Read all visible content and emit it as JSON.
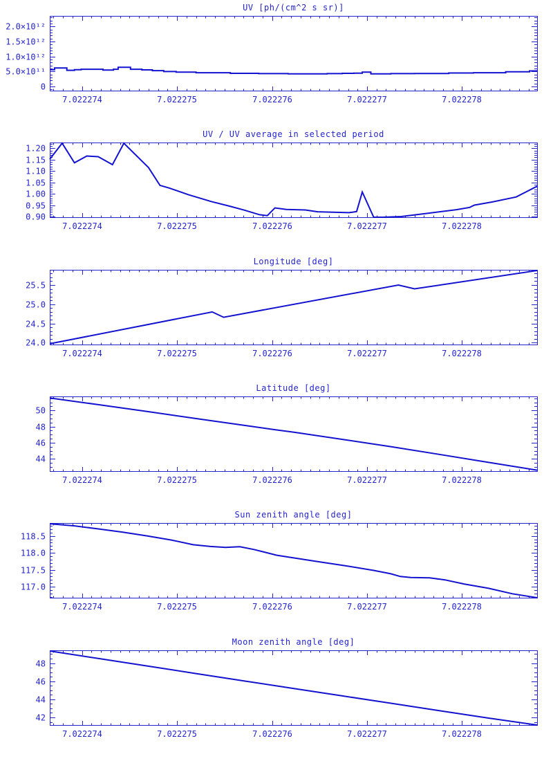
{
  "colors": {
    "accent": "#2424cc",
    "line": "#1212d0",
    "background": "#ffffff"
  },
  "x_axis": {
    "xlim": [
      7.02227366,
      7.02227879
    ],
    "minor_divisions": 10,
    "ticks": [
      {
        "v": 7.022274,
        "label": "7.022274"
      },
      {
        "v": 7.022275,
        "label": "7.022275"
      },
      {
        "v": 7.022276,
        "label": "7.022276"
      },
      {
        "v": 7.022277,
        "label": "7.022277"
      },
      {
        "v": 7.022278,
        "label": "7.022278"
      }
    ]
  },
  "chart_data": [
    {
      "id": "uv",
      "type": "line",
      "title": "UV [ph/(cm^2 s sr)]",
      "step_mode": true,
      "ylim": [
        -160000000000.0,
        2353000000000.0
      ],
      "yminor": 100000000000.0,
      "yticks": [
        {
          "v": 0,
          "label": "0"
        },
        {
          "v": 500000000000.0,
          "label": "5.0×10¹¹"
        },
        {
          "v": 1000000000000.0,
          "label": "1.0×10¹²"
        },
        {
          "v": 1500000000000.0,
          "label": "1.5×10¹²"
        },
        {
          "v": 2000000000000.0,
          "label": "2.0×10¹²"
        }
      ],
      "x": [
        7.02227366,
        7.02227371,
        7.02227384,
        7.02227392,
        7.02227399,
        7.02227422,
        7.02227433,
        7.02227438,
        7.02227451,
        7.02227463,
        7.02227474,
        7.02227486,
        7.02227499,
        7.0222752,
        7.02227556,
        7.02227586,
        7.02227617,
        7.02227658,
        7.02227674,
        7.02227686,
        7.02227695,
        7.02227704,
        7.02227725,
        7.0222775,
        7.02227786,
        7.02227812,
        7.02227846,
        7.02227871,
        7.02227879
      ],
      "y": [
        560000000000.0,
        620000000000.0,
        540000000000.0,
        560000000000.0,
        575000000000.0,
        550000000000.0,
        575000000000.0,
        640000000000.0,
        575000000000.0,
        555000000000.0,
        530000000000.0,
        500000000000.0,
        480000000000.0,
        460000000000.0,
        440000000000.0,
        430000000000.0,
        420000000000.0,
        430000000000.0,
        440000000000.0,
        445000000000.0,
        480000000000.0,
        420000000000.0,
        430000000000.0,
        435000000000.0,
        450000000000.0,
        460000000000.0,
        490000000000.0,
        520000000000.0,
        530000000000.0
      ]
    },
    {
      "id": "uv-ratio",
      "type": "line",
      "title": "UV / UV average in selected period",
      "step_mode": false,
      "ylim": [
        0.8939,
        1.2252
      ],
      "yminor": 0.01,
      "yticks": [
        {
          "v": 0.9,
          "label": "0.90"
        },
        {
          "v": 0.95,
          "label": "0.95"
        },
        {
          "v": 1.0,
          "label": "1.00"
        },
        {
          "v": 1.05,
          "label": "1.05"
        },
        {
          "v": 1.1,
          "label": "1.10"
        },
        {
          "v": 1.15,
          "label": "1.15"
        },
        {
          "v": 1.2,
          "label": "1.20"
        }
      ],
      "x": [
        7.02227366,
        7.02227379,
        7.02227392,
        7.02227405,
        7.02227417,
        7.02227432,
        7.02227444,
        7.0222747,
        7.02227482,
        7.02227492,
        7.02227512,
        7.02227536,
        7.02227555,
        7.02227571,
        7.02227587,
        7.02227595,
        7.02227603,
        7.02227615,
        7.02227635,
        7.02227648,
        7.02227681,
        7.02227689,
        7.02227695,
        7.02227707,
        7.02227716,
        7.02227736,
        7.02227765,
        7.02227794,
        7.02227808,
        7.02227813,
        7.02227832,
        7.02227857,
        7.02227879
      ],
      "y": [
        1.152,
        1.225,
        1.136,
        1.166,
        1.163,
        1.128,
        1.225,
        1.115,
        1.037,
        1.025,
        0.996,
        0.966,
        0.946,
        0.928,
        0.908,
        0.904,
        0.938,
        0.931,
        0.929,
        0.921,
        0.917,
        0.922,
        1.008,
        0.885,
        0.885,
        0.9,
        0.915,
        0.93,
        0.94,
        0.95,
        0.964,
        0.986,
        1.033
      ]
    },
    {
      "id": "longitude",
      "type": "line",
      "title": "Longitude [deg]",
      "step_mode": false,
      "ylim": [
        23.933,
        25.896
      ],
      "yminor": 0.1,
      "yticks": [
        {
          "v": 24.0,
          "label": "24.0"
        },
        {
          "v": 24.5,
          "label": "24.5"
        },
        {
          "v": 25.0,
          "label": "25.0"
        },
        {
          "v": 25.5,
          "label": "25.5"
        }
      ],
      "x": [
        7.02227366,
        7.02227537,
        7.02227549,
        7.02227733,
        7.0222775,
        7.02227879
      ],
      "y": [
        23.97,
        24.8,
        24.66,
        25.5,
        25.4,
        25.89
      ]
    },
    {
      "id": "latitude",
      "type": "line",
      "title": "Latitude [deg]",
      "step_mode": false,
      "ylim": [
        42.397,
        51.74
      ],
      "yminor": 0.5,
      "yticks": [
        {
          "v": 44,
          "label": "44"
        },
        {
          "v": 46,
          "label": "46"
        },
        {
          "v": 48,
          "label": "48"
        },
        {
          "v": 50,
          "label": "50"
        }
      ],
      "x": [
        7.02227366,
        7.02227417,
        7.02227469,
        7.0222752,
        7.02227571,
        7.02227603,
        7.02227623,
        7.02227674,
        7.02227725,
        7.02227776,
        7.02227828,
        7.02227879
      ],
      "y": [
        51.55,
        50.72,
        49.86,
        49.0,
        48.15,
        47.62,
        47.3,
        46.42,
        45.52,
        44.56,
        43.56,
        42.6
      ]
    },
    {
      "id": "sun-zenith",
      "type": "line",
      "title": "Sun zenith angle [deg]",
      "step_mode": false,
      "ylim": [
        116.652,
        118.883
      ],
      "yminor": 0.1,
      "yticks": [
        {
          "v": 117.0,
          "label": "117.0"
        },
        {
          "v": 117.5,
          "label": "117.5"
        },
        {
          "v": 118.0,
          "label": "118.0"
        },
        {
          "v": 118.5,
          "label": "118.5"
        }
      ],
      "x": [
        7.02227366,
        7.02227392,
        7.02227417,
        7.02227443,
        7.02227469,
        7.02227494,
        7.02227517,
        7.02227535,
        7.02227551,
        7.02227566,
        7.02227581,
        7.02227605,
        7.02227648,
        7.02227677,
        7.02227707,
        7.02227725,
        7.02227735,
        7.02227746,
        7.02227766,
        7.02227782,
        7.02227802,
        7.02227828,
        7.02227853,
        7.02227879
      ],
      "y": [
        118.86,
        118.8,
        118.71,
        118.61,
        118.5,
        118.38,
        118.24,
        118.19,
        118.16,
        118.18,
        118.1,
        117.93,
        117.74,
        117.62,
        117.48,
        117.38,
        117.3,
        117.27,
        117.26,
        117.2,
        117.08,
        116.95,
        116.79,
        116.66
      ]
    },
    {
      "id": "moon-zenith",
      "type": "line",
      "title": "Moon zenith angle [deg]",
      "step_mode": false,
      "ylim": [
        41.082,
        49.42
      ],
      "yminor": 0.5,
      "yticks": [
        {
          "v": 42,
          "label": "42"
        },
        {
          "v": 44,
          "label": "44"
        },
        {
          "v": 46,
          "label": "46"
        },
        {
          "v": 48,
          "label": "48"
        }
      ],
      "x": [
        7.02227366,
        7.02227417,
        7.02227469,
        7.0222752,
        7.02227571,
        7.02227623,
        7.02227674,
        7.02227725,
        7.02227776,
        7.02227828,
        7.02227879
      ],
      "y": [
        49.35,
        48.52,
        47.68,
        46.85,
        46.02,
        45.2,
        44.38,
        43.57,
        42.75,
        41.92,
        41.1
      ]
    }
  ]
}
